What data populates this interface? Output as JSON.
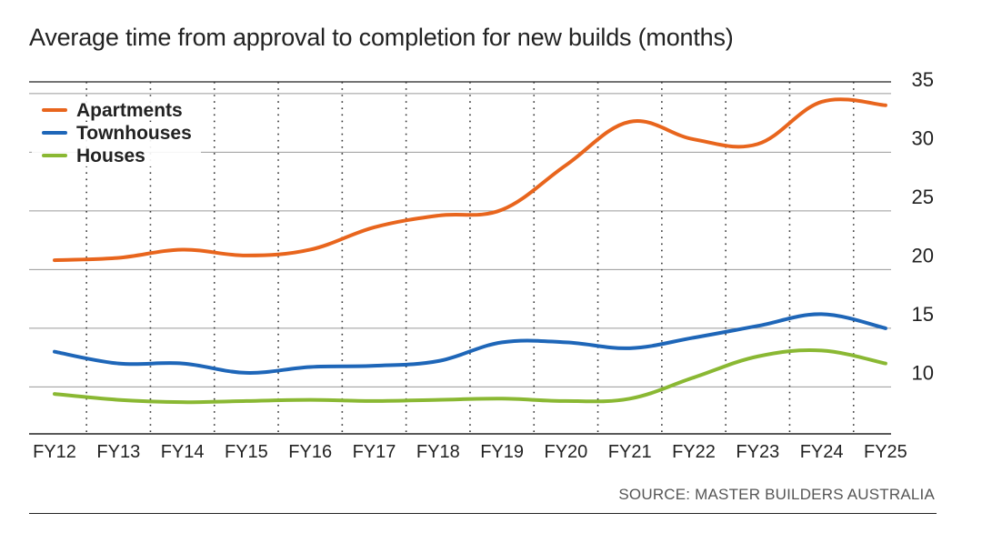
{
  "chart_data": {
    "type": "line",
    "title": "Average time from approval to completion for new builds (months)",
    "source": "SOURCE: MASTER BUILDERS AUSTRALIA",
    "categories": [
      "FY12",
      "FY13",
      "FY14",
      "FY15",
      "FY16",
      "FY17",
      "FY18",
      "FY19",
      "FY20",
      "FY21",
      "FY22",
      "FY23",
      "FY24",
      "FY25"
    ],
    "y_ticks": [
      10,
      15,
      20,
      25,
      30,
      35
    ],
    "ylim": [
      6,
      36
    ],
    "grid": "horizontal solid, vertical dotted",
    "legend_position": "top-left",
    "series": [
      {
        "name": "Apartments",
        "color": "#e8651d",
        "values": [
          20.8,
          21.0,
          21.7,
          21.2,
          21.7,
          23.6,
          24.6,
          25.1,
          28.9,
          32.6,
          31.1,
          30.7,
          34.3,
          34.0
        ]
      },
      {
        "name": "Townhouses",
        "color": "#1e66b8",
        "values": [
          13.0,
          12.0,
          12.0,
          11.2,
          11.7,
          11.8,
          12.2,
          13.8,
          13.8,
          13.3,
          14.2,
          15.2,
          16.2,
          15.0
        ]
      },
      {
        "name": "Houses",
        "color": "#8ab833",
        "values": [
          9.4,
          8.9,
          8.7,
          8.8,
          8.9,
          8.8,
          8.9,
          9.0,
          8.8,
          9.0,
          10.8,
          12.6,
          13.1,
          12.0
        ]
      }
    ]
  }
}
